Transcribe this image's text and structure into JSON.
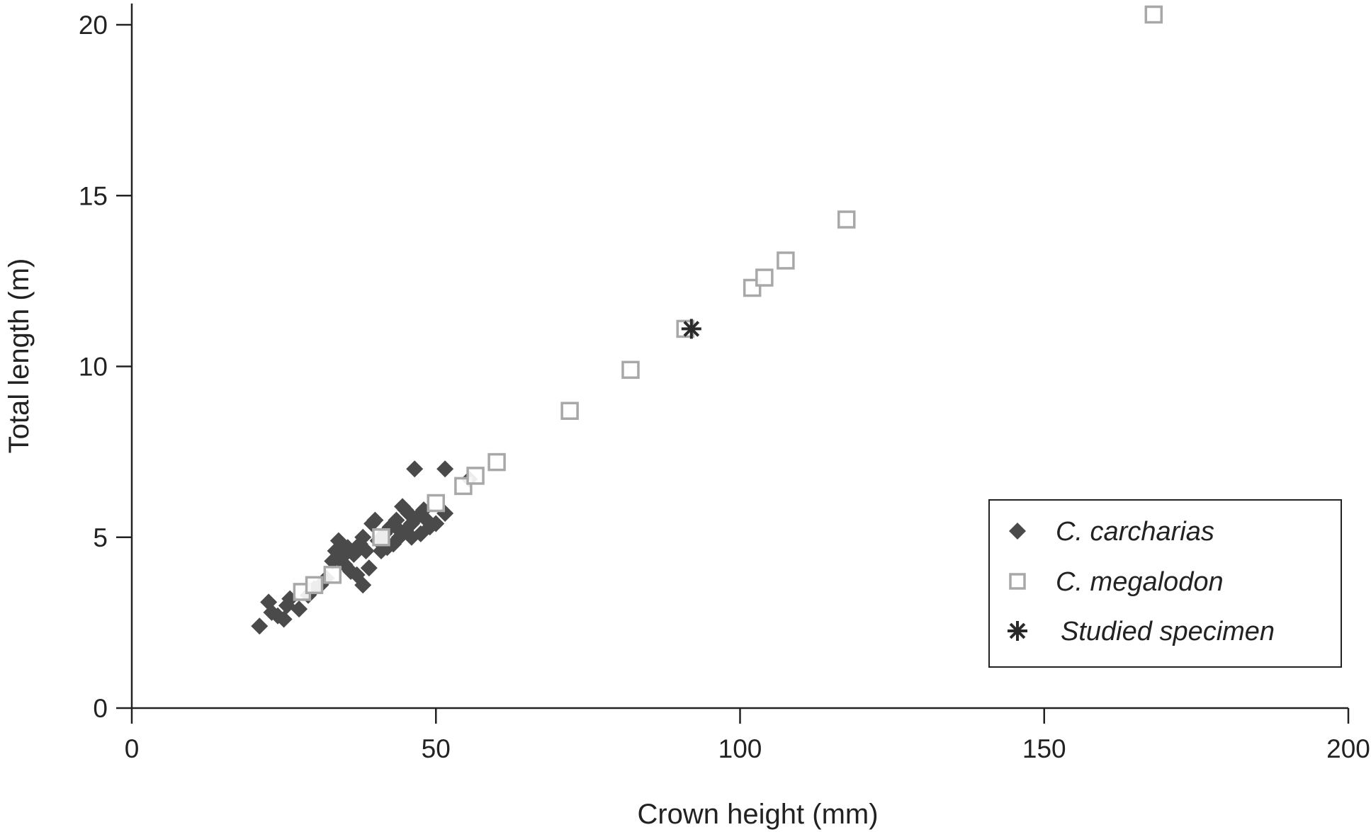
{
  "chart_data": {
    "type": "scatter",
    "xlabel": "Crown height (mm)",
    "ylabel": "Total length (m)",
    "xlim": [
      0,
      200
    ],
    "ylim": [
      0,
      20
    ],
    "xticks": [
      "0",
      "50",
      "100",
      "150",
      "200"
    ],
    "yticks": [
      "0",
      "5",
      "10",
      "15",
      "20"
    ],
    "grid": false,
    "legend_position": "bottom-right",
    "series": [
      {
        "name": "C. carcharias",
        "marker": "diamond",
        "color": "#4a4a4a",
        "points": [
          [
            21,
            2.4
          ],
          [
            22.5,
            3.1
          ],
          [
            23,
            2.8
          ],
          [
            24,
            2.7
          ],
          [
            25,
            2.6
          ],
          [
            25.5,
            3.0
          ],
          [
            26,
            3.2
          ],
          [
            27.5,
            2.9
          ],
          [
            29,
            3.3
          ],
          [
            30,
            3.5
          ],
          [
            31,
            3.6
          ],
          [
            32,
            3.8
          ],
          [
            33,
            4.3
          ],
          [
            33.5,
            4.6
          ],
          [
            34,
            4.9
          ],
          [
            34.5,
            4.4
          ],
          [
            35,
            4.2
          ],
          [
            35.5,
            4.7
          ],
          [
            36,
            4.0
          ],
          [
            36.5,
            4.5
          ],
          [
            37,
            3.9
          ],
          [
            37.5,
            4.8
          ],
          [
            38,
            3.6
          ],
          [
            38.5,
            4.6
          ],
          [
            39,
            4.1
          ],
          [
            39.5,
            5.4
          ],
          [
            40,
            5.5
          ],
          [
            40.5,
            4.9
          ],
          [
            41,
            4.6
          ],
          [
            41.5,
            5.1
          ],
          [
            42,
            4.7
          ],
          [
            42.5,
            5.3
          ],
          [
            43,
            4.8
          ],
          [
            43.5,
            5.5
          ],
          [
            44,
            5.0
          ],
          [
            44.5,
            5.9
          ],
          [
            45,
            5.2
          ],
          [
            45.5,
            5.7
          ],
          [
            46,
            5.4
          ],
          [
            46.5,
            7.0
          ],
          [
            47,
            5.6
          ],
          [
            47.5,
            5.1
          ],
          [
            48,
            5.8
          ],
          [
            48.5,
            5.5
          ],
          [
            49,
            5.3
          ],
          [
            50,
            5.4
          ],
          [
            51.5,
            7.0
          ],
          [
            51.5,
            5.7
          ],
          [
            55.5,
            6.7
          ],
          [
            44,
            5.2
          ],
          [
            46,
            5.0
          ],
          [
            36,
            4.6
          ],
          [
            38,
            5.0
          ],
          [
            45,
            5.8
          ]
        ]
      },
      {
        "name": "C. megalodon",
        "marker": "open-square",
        "color": "#a8a8a8",
        "points": [
          [
            28,
            3.4
          ],
          [
            30,
            3.6
          ],
          [
            33,
            3.9
          ],
          [
            41,
            5.0
          ],
          [
            50,
            6.0
          ],
          [
            54.5,
            6.5
          ],
          [
            56.5,
            6.8
          ],
          [
            60,
            7.2
          ],
          [
            72,
            8.7
          ],
          [
            82,
            9.9
          ],
          [
            91,
            11.1
          ],
          [
            102,
            12.3
          ],
          [
            104,
            12.6
          ],
          [
            107.5,
            13.1
          ],
          [
            117.5,
            14.3
          ],
          [
            168,
            20.3
          ]
        ]
      },
      {
        "name": "Studied specimen",
        "marker": "asterisk",
        "color": "#2a2a2a",
        "points": [
          [
            92,
            11.1
          ]
        ]
      }
    ]
  }
}
